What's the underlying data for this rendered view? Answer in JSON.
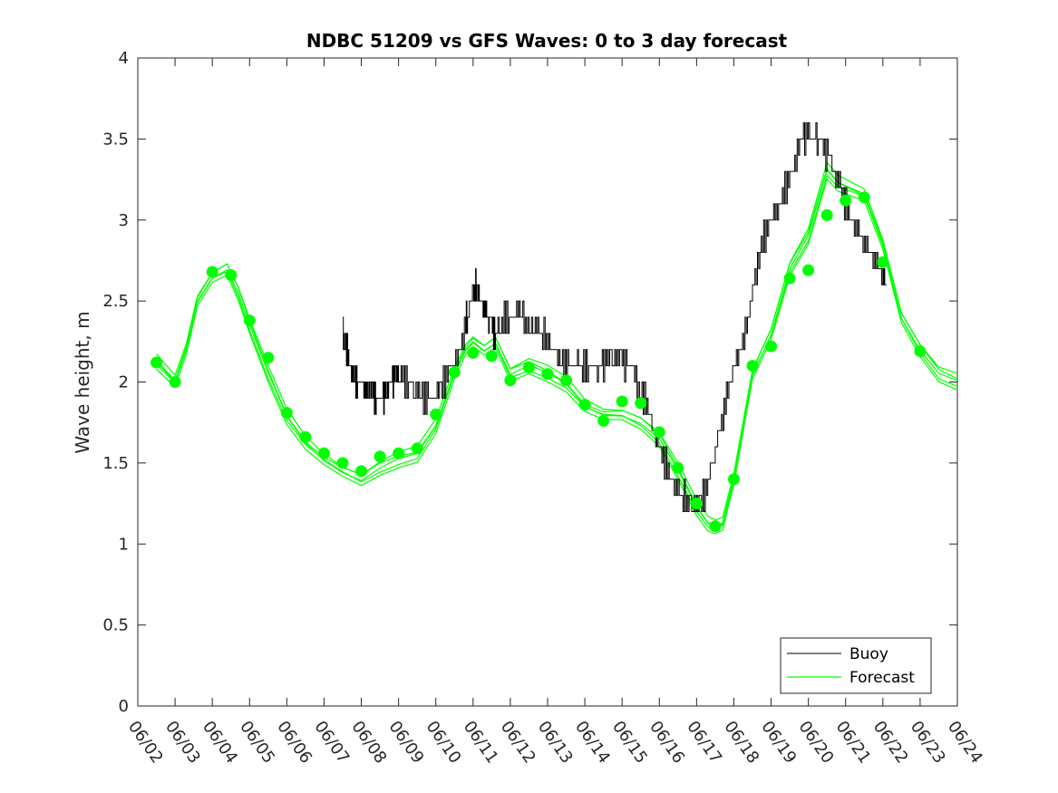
{
  "chart_data": {
    "type": "line",
    "title": "NDBC 51209 vs GFS Waves: 0 to 3 day forecast",
    "xlabel": "",
    "ylabel": "Wave height, m",
    "x_ticks": [
      "06/02",
      "06/03",
      "06/04",
      "06/05",
      "06/06",
      "06/07",
      "06/08",
      "06/09",
      "06/10",
      "06/11",
      "06/12",
      "06/13",
      "06/14",
      "06/15",
      "06/16",
      "06/17",
      "06/18",
      "06/19",
      "06/20",
      "06/21",
      "06/22",
      "06/23",
      "06/24"
    ],
    "y_ticks": [
      "0",
      "0.5",
      "1",
      "1.5",
      "2",
      "2.5",
      "3",
      "3.5",
      "4"
    ],
    "xlim": [
      "06/02",
      "06/24"
    ],
    "ylim": [
      0,
      4
    ],
    "grid": false,
    "legend_position": "bottom-right",
    "colors": {
      "buoy": "#000000",
      "forecast": "#00ff00"
    },
    "series": [
      {
        "name": "Buoy",
        "style": "line",
        "points": [
          [
            4.5,
            2.3
          ],
          [
            4.6,
            2.2
          ],
          [
            4.7,
            2.1
          ],
          [
            4.8,
            2.0
          ],
          [
            4.9,
            2.0
          ],
          [
            5.0,
            2.0
          ],
          [
            5.1,
            1.95
          ],
          [
            5.2,
            1.95
          ],
          [
            5.3,
            1.95
          ],
          [
            5.4,
            1.9
          ],
          [
            5.5,
            1.9
          ],
          [
            5.6,
            1.9
          ],
          [
            5.7,
            1.95
          ],
          [
            5.8,
            2.0
          ],
          [
            5.9,
            2.05
          ],
          [
            6.0,
            2.05
          ],
          [
            6.2,
            2.0
          ],
          [
            6.4,
            1.95
          ],
          [
            6.6,
            1.9
          ],
          [
            6.8,
            1.9
          ],
          [
            7.0,
            1.9
          ],
          [
            7.2,
            2.0
          ],
          [
            7.4,
            2.1
          ],
          [
            7.6,
            2.2
          ],
          [
            7.8,
            2.35
          ],
          [
            7.9,
            2.45
          ],
          [
            8.0,
            2.55
          ],
          [
            8.1,
            2.6
          ],
          [
            8.2,
            2.5
          ],
          [
            8.3,
            2.45
          ],
          [
            8.4,
            2.4
          ],
          [
            8.5,
            2.35
          ],
          [
            8.6,
            2.3
          ],
          [
            8.8,
            2.35
          ],
          [
            9.0,
            2.4
          ],
          [
            9.2,
            2.45
          ],
          [
            9.4,
            2.35
          ],
          [
            9.6,
            2.35
          ],
          [
            9.8,
            2.3
          ],
          [
            10.0,
            2.25
          ],
          [
            10.2,
            2.2
          ],
          [
            10.4,
            2.1
          ],
          [
            10.6,
            2.1
          ],
          [
            10.8,
            2.1
          ],
          [
            11.0,
            2.1
          ],
          [
            11.2,
            2.1
          ],
          [
            11.4,
            2.1
          ],
          [
            11.6,
            2.15
          ],
          [
            11.8,
            2.15
          ],
          [
            12.0,
            2.15
          ],
          [
            12.2,
            2.1
          ],
          [
            12.4,
            2.0
          ],
          [
            12.6,
            1.9
          ],
          [
            12.8,
            1.75
          ],
          [
            13.0,
            1.6
          ],
          [
            13.2,
            1.45
          ],
          [
            13.4,
            1.35
          ],
          [
            13.6,
            1.3
          ],
          [
            13.8,
            1.25
          ],
          [
            14.0,
            1.25
          ],
          [
            14.2,
            1.3
          ],
          [
            14.4,
            1.5
          ],
          [
            14.6,
            1.7
          ],
          [
            14.8,
            1.9
          ],
          [
            15.0,
            2.1
          ],
          [
            15.2,
            2.2
          ],
          [
            15.4,
            2.4
          ],
          [
            15.6,
            2.7
          ],
          [
            15.8,
            2.9
          ],
          [
            16.0,
            3.0
          ],
          [
            16.2,
            3.1
          ],
          [
            16.4,
            3.2
          ],
          [
            16.6,
            3.35
          ],
          [
            16.8,
            3.5
          ],
          [
            17.0,
            3.55
          ],
          [
            17.2,
            3.5
          ],
          [
            17.4,
            3.45
          ],
          [
            17.6,
            3.35
          ],
          [
            17.8,
            3.25
          ],
          [
            18.0,
            3.1
          ],
          [
            18.2,
            3.0
          ],
          [
            18.4,
            2.9
          ],
          [
            18.6,
            2.8
          ],
          [
            18.8,
            2.75
          ],
          [
            19.0,
            2.65
          ],
          [
            19.1,
            2.6
          ]
        ]
      },
      {
        "name": "Forecast",
        "style": "line-with-markers",
        "markers": [
          [
            -0.5,
            2.12
          ],
          [
            0.0,
            2.0
          ],
          [
            1.0,
            2.68
          ],
          [
            1.5,
            2.66
          ],
          [
            2.0,
            2.38
          ],
          [
            2.5,
            2.15
          ],
          [
            3.0,
            1.81
          ],
          [
            3.5,
            1.66
          ],
          [
            4.0,
            1.56
          ],
          [
            4.5,
            1.5
          ],
          [
            5.0,
            1.45
          ],
          [
            5.5,
            1.54
          ],
          [
            6.0,
            1.56
          ],
          [
            6.5,
            1.59
          ],
          [
            7.0,
            1.8
          ],
          [
            7.5,
            2.06
          ],
          [
            8.0,
            2.18
          ],
          [
            8.5,
            2.16
          ],
          [
            9.0,
            2.01
          ],
          [
            9.5,
            2.09
          ],
          [
            10.0,
            2.05
          ],
          [
            10.5,
            2.01
          ],
          [
            11.0,
            1.86
          ],
          [
            11.5,
            1.76
          ],
          [
            12.0,
            1.88
          ],
          [
            12.5,
            1.87
          ],
          [
            13.0,
            1.69
          ],
          [
            13.5,
            1.47
          ],
          [
            14.0,
            1.25
          ],
          [
            14.5,
            1.11
          ],
          [
            15.0,
            1.4
          ],
          [
            15.5,
            2.1
          ],
          [
            16.0,
            2.22
          ],
          [
            16.5,
            2.64
          ],
          [
            17.0,
            2.69
          ],
          [
            17.5,
            3.03
          ],
          [
            18.0,
            3.12
          ],
          [
            18.5,
            3.14
          ],
          [
            19.0,
            2.74
          ],
          [
            20.0,
            2.19
          ]
        ],
        "curve": [
          [
            -0.5,
            2.12
          ],
          [
            0.0,
            2.0
          ],
          [
            0.3,
            2.2
          ],
          [
            0.6,
            2.5
          ],
          [
            1.0,
            2.65
          ],
          [
            1.4,
            2.7
          ],
          [
            1.7,
            2.55
          ],
          [
            2.0,
            2.35
          ],
          [
            2.5,
            2.05
          ],
          [
            3.0,
            1.78
          ],
          [
            3.5,
            1.62
          ],
          [
            4.0,
            1.52
          ],
          [
            4.5,
            1.45
          ],
          [
            5.0,
            1.4
          ],
          [
            5.5,
            1.47
          ],
          [
            6.0,
            1.52
          ],
          [
            6.5,
            1.55
          ],
          [
            7.0,
            1.72
          ],
          [
            7.5,
            2.05
          ],
          [
            7.8,
            2.2
          ],
          [
            8.0,
            2.25
          ],
          [
            8.3,
            2.2
          ],
          [
            8.6,
            2.25
          ],
          [
            9.0,
            2.05
          ],
          [
            9.5,
            2.1
          ],
          [
            10.0,
            2.05
          ],
          [
            10.5,
            1.98
          ],
          [
            11.0,
            1.85
          ],
          [
            11.5,
            1.8
          ],
          [
            12.0,
            1.8
          ],
          [
            12.5,
            1.75
          ],
          [
            13.0,
            1.65
          ],
          [
            13.5,
            1.45
          ],
          [
            14.0,
            1.22
          ],
          [
            14.3,
            1.12
          ],
          [
            14.5,
            1.1
          ],
          [
            14.7,
            1.12
          ],
          [
            15.0,
            1.4
          ],
          [
            15.5,
            2.05
          ],
          [
            16.0,
            2.3
          ],
          [
            16.5,
            2.7
          ],
          [
            17.0,
            2.9
          ],
          [
            17.5,
            3.3
          ],
          [
            17.8,
            3.22
          ],
          [
            18.0,
            3.2
          ],
          [
            18.5,
            3.15
          ],
          [
            19.0,
            2.85
          ],
          [
            19.5,
            2.4
          ],
          [
            20.0,
            2.2
          ],
          [
            20.5,
            2.05
          ],
          [
            21.0,
            2.0
          ]
        ]
      }
    ]
  },
  "legend": {
    "items": [
      "Buoy",
      "Forecast"
    ]
  }
}
